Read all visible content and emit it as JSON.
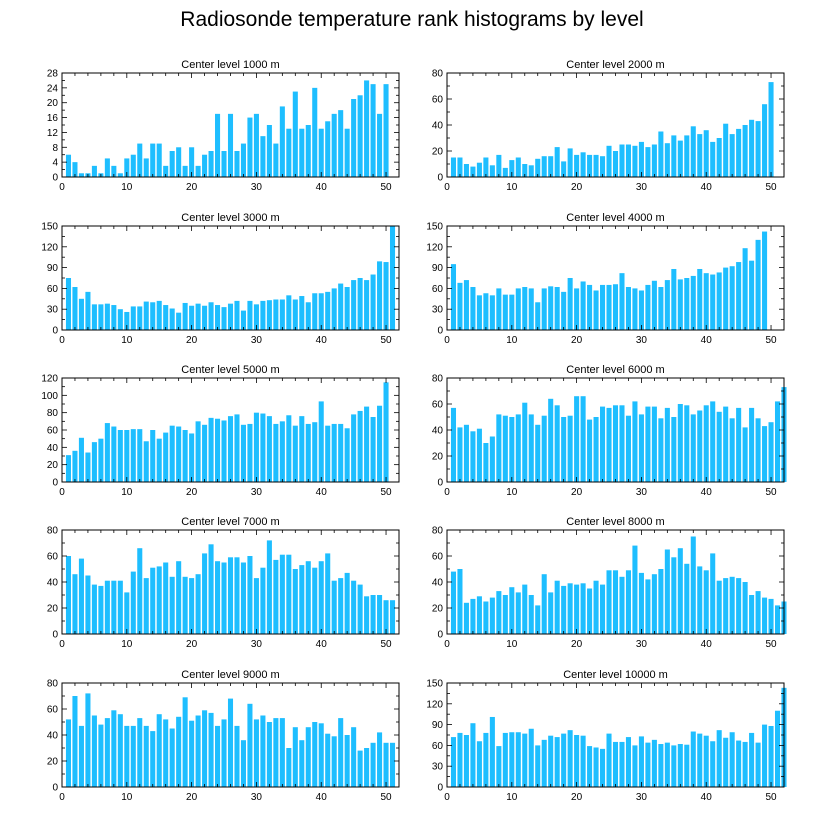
{
  "title": "Radiosonde temperature rank histograms by level",
  "chart_data": [
    {
      "type": "bar",
      "title": "Center level 1000 m",
      "ylim": [
        0,
        28
      ],
      "yticks": [
        0,
        4,
        8,
        12,
        16,
        20,
        24,
        28
      ],
      "xlim": [
        0,
        52
      ],
      "xticks": [
        0,
        10,
        20,
        30,
        40,
        50
      ],
      "color": "#1ebeff",
      "values": [
        6,
        4,
        1,
        1,
        3,
        1,
        5,
        3,
        1,
        5,
        6,
        9,
        5,
        9,
        9,
        3,
        7,
        8,
        3,
        8,
        3,
        6,
        7,
        17,
        7,
        17,
        7,
        9,
        16,
        17,
        11,
        14,
        9,
        19,
        13,
        23,
        13,
        14,
        24,
        13,
        15,
        17,
        18,
        13,
        21,
        22,
        26,
        25,
        17,
        25
      ]
    },
    {
      "type": "bar",
      "title": "Center level 2000 m",
      "ylim": [
        0,
        80
      ],
      "yticks": [
        0,
        20,
        40,
        60,
        80
      ],
      "xlim": [
        0,
        52
      ],
      "xticks": [
        0,
        10,
        20,
        30,
        40,
        50
      ],
      "color": "#1ebeff",
      "values": [
        15,
        15,
        10,
        8,
        11,
        15,
        9,
        17,
        7,
        13,
        15,
        10,
        9,
        14,
        16,
        16,
        23,
        12,
        22,
        17,
        19,
        17,
        17,
        16,
        24,
        20,
        25,
        25,
        24,
        27,
        23,
        25,
        35,
        26,
        32,
        28,
        32,
        39,
        33,
        36,
        27,
        30,
        41,
        33,
        37,
        40,
        44,
        43,
        56,
        73
      ]
    },
    {
      "type": "bar",
      "title": "Center level 3000 m",
      "ylim": [
        0,
        150
      ],
      "yticks": [
        0,
        30,
        60,
        90,
        120,
        150
      ],
      "xlim": [
        0,
        52
      ],
      "xticks": [
        0,
        10,
        20,
        30,
        40,
        50
      ],
      "color": "#1ebeff",
      "values": [
        75,
        62,
        45,
        55,
        37,
        37,
        38,
        36,
        30,
        26,
        34,
        34,
        41,
        40,
        42,
        36,
        31,
        25,
        39,
        35,
        38,
        35,
        40,
        36,
        33,
        38,
        42,
        28,
        42,
        37,
        42,
        43,
        44,
        44,
        50,
        44,
        49,
        40,
        53,
        53,
        55,
        60,
        67,
        62,
        72,
        75,
        72,
        80,
        99,
        98,
        150
      ]
    },
    {
      "type": "bar",
      "title": "Center level 4000 m",
      "ylim": [
        0,
        150
      ],
      "yticks": [
        0,
        30,
        60,
        90,
        120,
        150
      ],
      "xlim": [
        0,
        52
      ],
      "xticks": [
        0,
        10,
        20,
        30,
        40,
        50
      ],
      "color": "#1ebeff",
      "values": [
        95,
        68,
        72,
        62,
        50,
        53,
        50,
        60,
        51,
        51,
        60,
        62,
        60,
        40,
        60,
        63,
        62,
        55,
        75,
        60,
        70,
        65,
        57,
        65,
        65,
        66,
        82,
        62,
        60,
        57,
        65,
        71,
        62,
        72,
        88,
        73,
        75,
        78,
        88,
        82,
        80,
        83,
        90,
        92,
        98,
        118,
        100,
        130,
        142
      ]
    },
    {
      "type": "bar",
      "title": "Center level 5000 m",
      "ylim": [
        0,
        120
      ],
      "yticks": [
        0,
        20,
        40,
        60,
        80,
        100,
        120
      ],
      "xlim": [
        0,
        52
      ],
      "xticks": [
        0,
        10,
        20,
        30,
        40,
        50
      ],
      "color": "#1ebeff",
      "values": [
        31,
        36,
        51,
        34,
        46,
        50,
        68,
        64,
        60,
        60,
        61,
        61,
        47,
        60,
        50,
        57,
        65,
        64,
        60,
        56,
        70,
        66,
        74,
        73,
        71,
        76,
        78,
        66,
        67,
        80,
        79,
        76,
        67,
        70,
        77,
        65,
        76,
        67,
        69,
        93,
        65,
        67,
        67,
        62,
        78,
        82,
        87,
        75,
        88,
        115
      ]
    },
    {
      "type": "bar",
      "title": "Center level 6000 m",
      "ylim": [
        0,
        80
      ],
      "yticks": [
        0,
        20,
        40,
        60,
        80
      ],
      "xlim": [
        0,
        52
      ],
      "xticks": [
        0,
        10,
        20,
        30,
        40,
        50
      ],
      "color": "#1ebeff",
      "values": [
        57,
        42,
        44,
        39,
        41,
        30,
        35,
        52,
        51,
        50,
        52,
        61,
        52,
        44,
        51,
        64,
        59,
        50,
        51,
        66,
        66,
        48,
        50,
        58,
        57,
        59,
        59,
        51,
        62,
        52,
        58,
        58,
        49,
        57,
        50,
        60,
        59,
        52,
        55,
        59,
        62,
        54,
        58,
        49,
        57,
        42,
        57,
        49,
        43,
        46,
        62,
        73
      ]
    },
    {
      "type": "bar",
      "title": "Center level 7000 m",
      "ylim": [
        0,
        80
      ],
      "yticks": [
        0,
        20,
        40,
        60,
        80
      ],
      "xlim": [
        0,
        52
      ],
      "xticks": [
        0,
        10,
        20,
        30,
        40,
        50
      ],
      "color": "#1ebeff",
      "values": [
        60,
        46,
        58,
        45,
        38,
        37,
        41,
        41,
        41,
        32,
        48,
        66,
        43,
        51,
        52,
        55,
        44,
        56,
        44,
        43,
        46,
        62,
        69,
        56,
        55,
        59,
        59,
        55,
        60,
        43,
        51,
        72,
        57,
        61,
        61,
        50,
        53,
        56,
        51,
        56,
        62,
        41,
        43,
        47,
        41,
        38,
        29,
        30,
        30,
        26,
        26
      ]
    },
    {
      "type": "bar",
      "title": "Center level 8000 m",
      "ylim": [
        0,
        80
      ],
      "yticks": [
        0,
        20,
        40,
        60,
        80
      ],
      "xlim": [
        0,
        52
      ],
      "xticks": [
        0,
        10,
        20,
        30,
        40,
        50
      ],
      "color": "#1ebeff",
      "values": [
        48,
        50,
        24,
        27,
        29,
        25,
        28,
        33,
        30,
        36,
        32,
        38,
        30,
        22,
        46,
        32,
        41,
        37,
        39,
        38,
        39,
        35,
        41,
        38,
        49,
        49,
        44,
        49,
        68,
        47,
        42,
        46,
        50,
        65,
        59,
        66,
        54,
        75,
        52,
        49,
        62,
        41,
        43,
        44,
        43,
        40,
        30,
        33,
        28,
        27,
        22,
        25
      ]
    },
    {
      "type": "bar",
      "title": "Center level 9000 m",
      "ylim": [
        0,
        80
      ],
      "yticks": [
        0,
        20,
        40,
        60,
        80
      ],
      "xlim": [
        0,
        52
      ],
      "xticks": [
        0,
        10,
        20,
        30,
        40,
        50
      ],
      "color": "#1ebeff",
      "values": [
        52,
        70,
        47,
        72,
        55,
        48,
        53,
        59,
        56,
        47,
        47,
        53,
        47,
        43,
        56,
        52,
        45,
        54,
        69,
        51,
        55,
        59,
        57,
        47,
        52,
        68,
        47,
        36,
        64,
        52,
        55,
        50,
        53,
        53,
        30,
        46,
        36,
        46,
        50,
        49,
        41,
        39,
        53,
        40,
        46,
        28,
        30,
        34,
        42,
        34,
        34
      ]
    },
    {
      "type": "bar",
      "title": "Center level 10000 m",
      "ylim": [
        0,
        150
      ],
      "yticks": [
        0,
        30,
        60,
        90,
        120,
        150
      ],
      "xlim": [
        0,
        52
      ],
      "xticks": [
        0,
        10,
        20,
        30,
        40,
        50
      ],
      "color": "#1ebeff",
      "values": [
        72,
        78,
        75,
        92,
        66,
        78,
        101,
        59,
        78,
        79,
        79,
        77,
        84,
        60,
        68,
        74,
        72,
        77,
        82,
        75,
        74,
        59,
        57,
        55,
        77,
        65,
        65,
        72,
        60,
        73,
        64,
        68,
        62,
        64,
        60,
        62,
        61,
        80,
        77,
        74,
        66,
        82,
        71,
        79,
        67,
        65,
        78,
        64,
        90,
        88,
        110,
        143
      ]
    }
  ]
}
